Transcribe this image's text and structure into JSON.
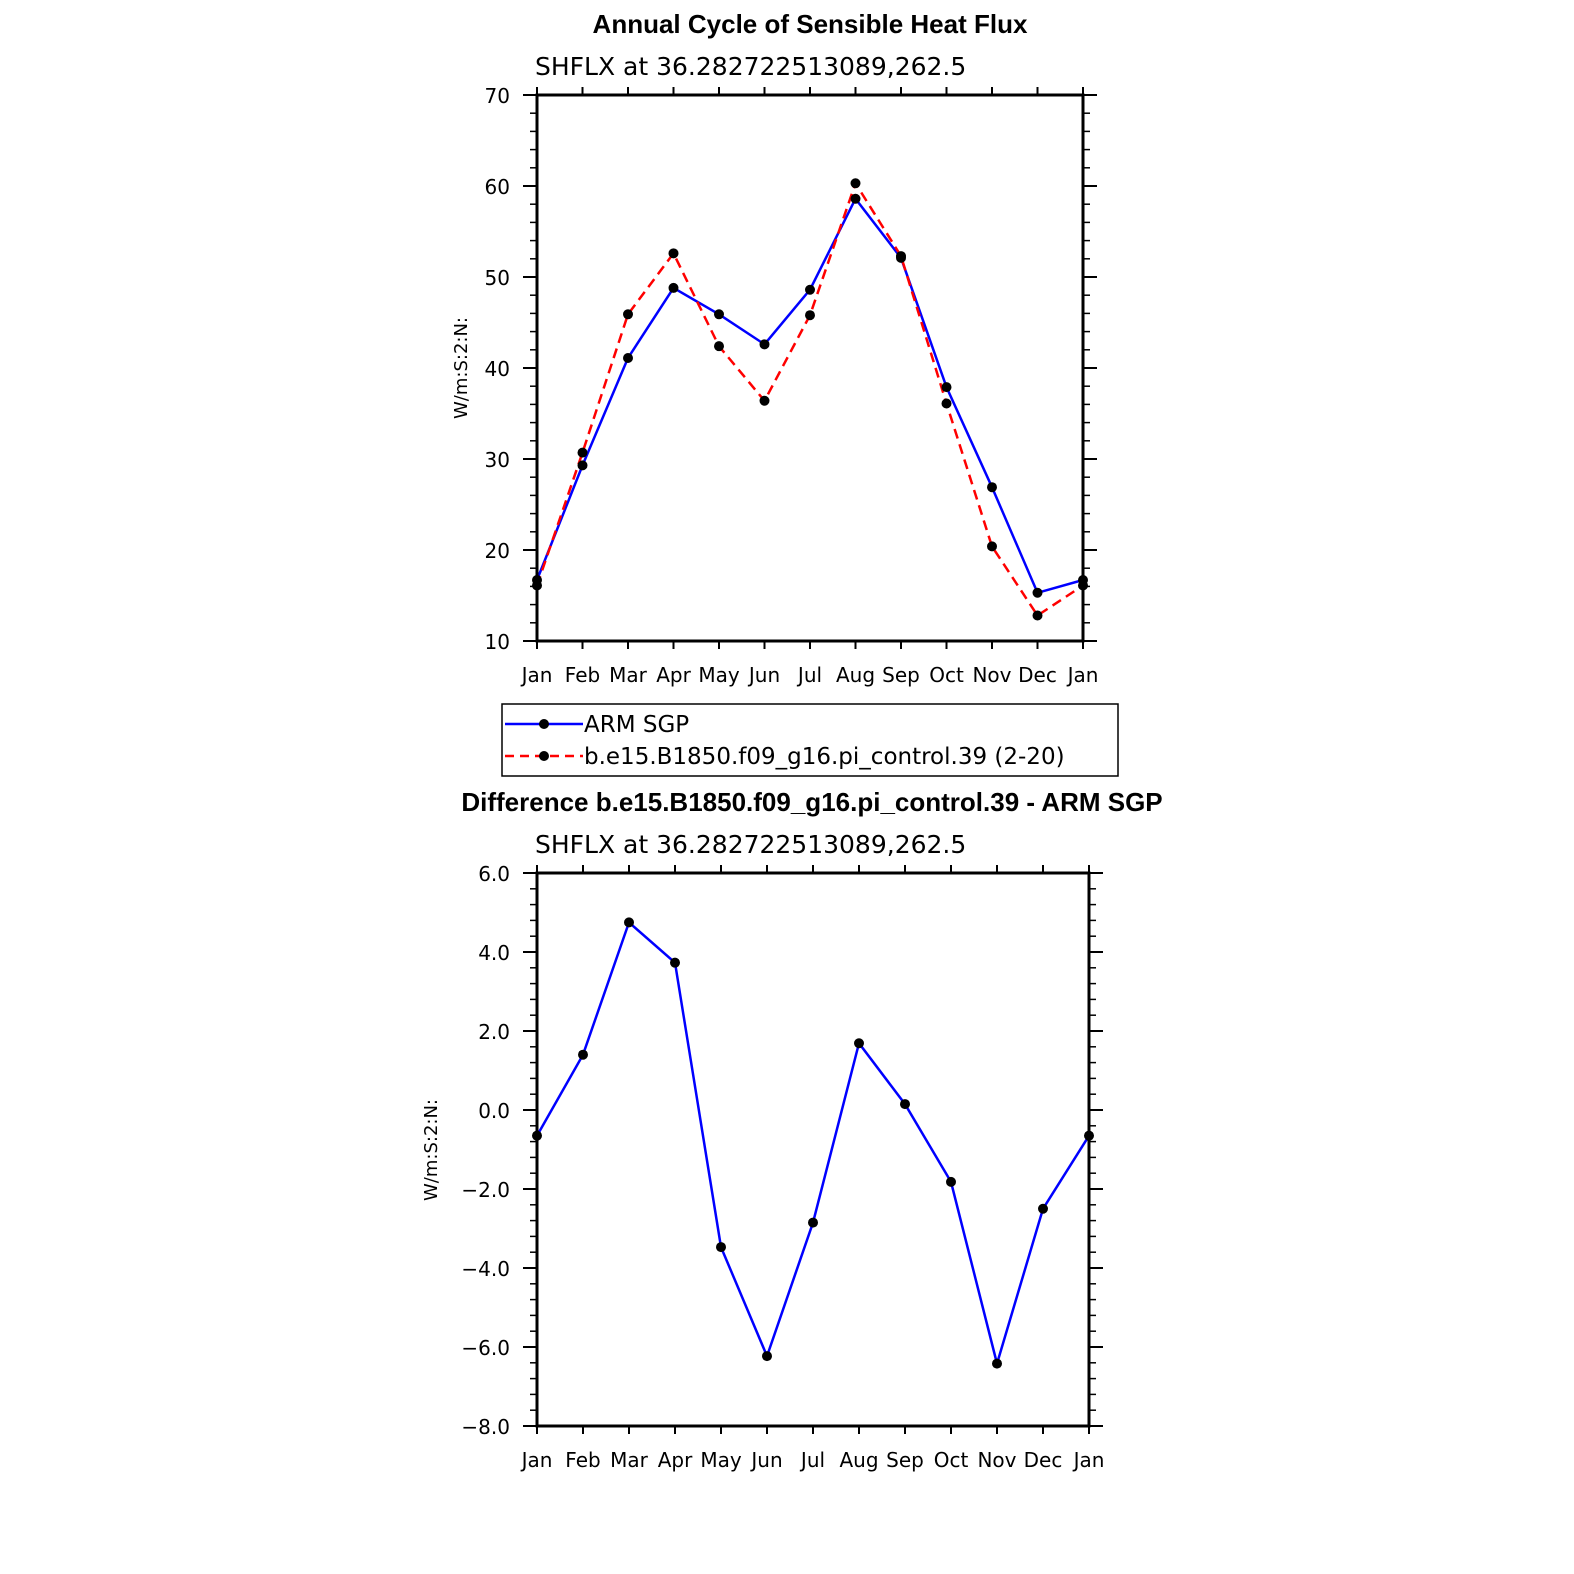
{
  "chart_data": [
    {
      "type": "line",
      "title": "Annual Cycle of Sensible Heat Flux",
      "subtitle": "SHFLX at 36.282722513089,262.5",
      "ylabel": "W/m:S:2:N:",
      "xlabel": "",
      "categories": [
        "Jan",
        "Feb",
        "Mar",
        "Apr",
        "May",
        "Jun",
        "Jul",
        "Aug",
        "Sep",
        "Oct",
        "Nov",
        "Dec",
        "Jan"
      ],
      "ylim": [
        10,
        70
      ],
      "yticks": [
        "10",
        "20",
        "30",
        "40",
        "50",
        "60",
        "70"
      ],
      "grid": false,
      "legend_position": "bottom",
      "series": [
        {
          "name": "ARM SGP",
          "color": "#0000ff",
          "dash": "solid",
          "values": [
            16.7,
            29.3,
            41.1,
            48.8,
            45.9,
            42.6,
            48.6,
            58.6,
            52.1,
            37.9,
            26.9,
            15.3,
            16.7
          ]
        },
        {
          "name": "b.e15.B1850.f09_g16.pi_control.39 (2-20)",
          "color": "#ff0000",
          "dash": "dashed",
          "values": [
            16.1,
            30.7,
            45.9,
            52.6,
            42.4,
            36.4,
            45.8,
            60.3,
            52.3,
            36.1,
            20.4,
            12.8,
            16.1
          ]
        }
      ]
    },
    {
      "type": "line",
      "title": "Difference b.e15.B1850.f09_g16.pi_control.39 - ARM SGP",
      "subtitle": "SHFLX at 36.282722513089,262.5",
      "ylabel": "W/m:S:2:N:",
      "xlabel": "",
      "categories": [
        "Jan",
        "Feb",
        "Mar",
        "Apr",
        "May",
        "Jun",
        "Jul",
        "Aug",
        "Sep",
        "Oct",
        "Nov",
        "Dec",
        "Jan"
      ],
      "ylim": [
        -8,
        6
      ],
      "yticks": [
        "−8.0",
        "−6.0",
        "−4.0",
        "−2.0",
        "0.0",
        "2.0",
        "4.0",
        "6.0"
      ],
      "grid": false,
      "series": [
        {
          "name": "",
          "color": "#0000ff",
          "dash": "solid",
          "values": [
            -0.65,
            1.4,
            4.75,
            3.73,
            -3.47,
            -6.23,
            -2.85,
            1.69,
            0.15,
            -1.82,
            -6.42,
            -2.5,
            -0.65
          ]
        }
      ]
    }
  ]
}
